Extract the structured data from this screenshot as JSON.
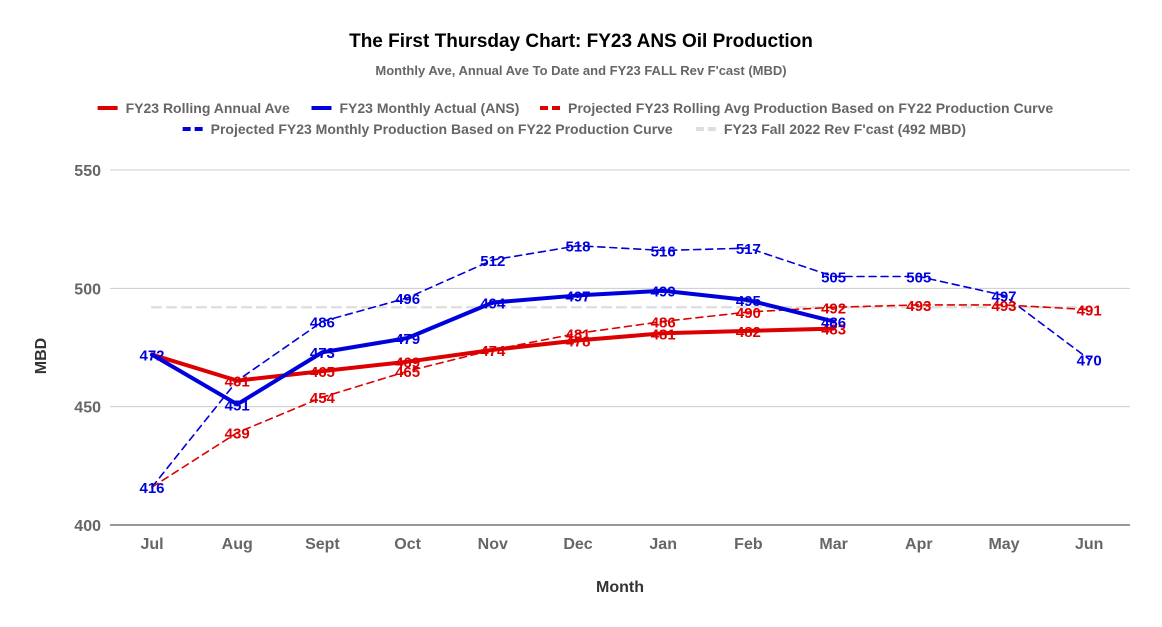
{
  "title": "The First Thursday Chart: FY23 ANS Oil Production",
  "subtitle": "Monthly Ave, Annual Ave To Date and FY23 FALL Rev F'cast (MBD)",
  "chart_data": {
    "type": "line",
    "title": "The First Thursday Chart: FY23 ANS Oil Production",
    "subtitle": "Monthly Ave, Annual Ave To Date and FY23 FALL Rev F'cast (MBD)",
    "xlabel": "Month",
    "ylabel": "MBD",
    "ylim": [
      400,
      550
    ],
    "yticks": [
      400,
      450,
      500,
      550
    ],
    "grid": true,
    "legend_position": "top",
    "categories": [
      "Jul",
      "Aug",
      "Sept",
      "Oct",
      "Nov",
      "Dec",
      "Jan",
      "Feb",
      "Mar",
      "Apr",
      "May",
      "Jun"
    ],
    "series": [
      {
        "name": "FY23 Fall 2022 Rev F'cast (492 MBD)",
        "color": "#dddddd",
        "style": "dashed",
        "width": "medium",
        "values": [
          492,
          492,
          492,
          492,
          492,
          492,
          492,
          492,
          492,
          492,
          492,
          492
        ],
        "labels": []
      },
      {
        "name": "Projected FY23 Monthly Production Based on FY22 Production Curve",
        "color": "#0000dd",
        "style": "dashed",
        "width": "thin",
        "values": [
          416,
          461,
          486,
          496,
          512,
          518,
          516,
          517,
          505,
          505,
          497,
          470
        ],
        "labels": [
          "416",
          "",
          "486",
          "496",
          "512",
          "518",
          "516",
          "517",
          "505",
          "505",
          "497",
          "470"
        ]
      },
      {
        "name": "Projected FY23 Rolling Avg Production Based on FY22 Production Curve",
        "color": "#dd0000",
        "style": "dashed",
        "width": "thin",
        "values": [
          416,
          439,
          454,
          465,
          474,
          481,
          486,
          490,
          492,
          493,
          493,
          491
        ],
        "labels": [
          "",
          "439",
          "454",
          "465",
          "",
          "481",
          "486",
          "490",
          "492",
          "493",
          "493",
          "491"
        ]
      },
      {
        "name": "FY23 Rolling Annual Ave",
        "color": "#dd0000",
        "style": "solid",
        "width": "thick",
        "values": [
          472,
          461,
          465,
          469,
          474,
          478,
          481,
          482,
          483,
          null,
          null,
          null
        ],
        "labels": [
          "",
          "461",
          "465",
          "469",
          "474",
          "478",
          "481",
          "482",
          "483",
          "",
          "",
          ""
        ]
      },
      {
        "name": "FY23 Monthly Actual (ANS)",
        "color": "#0000dd",
        "style": "solid",
        "width": "thick",
        "values": [
          472,
          451,
          473,
          479,
          494,
          497,
          499,
          495,
          486,
          null,
          null,
          null
        ],
        "labels": [
          "472",
          "451",
          "473",
          "479",
          "494",
          "497",
          "499",
          "495",
          "486",
          "",
          "",
          ""
        ]
      }
    ]
  },
  "legend": [
    {
      "label": "FY23 Rolling Annual Ave",
      "color": "#dd0000",
      "style": "solid"
    },
    {
      "label": "FY23 Monthly Actual (ANS)",
      "color": "#0000dd",
      "style": "solid"
    },
    {
      "label": "Projected FY23 Rolling Avg Production Based on FY22 Production Curve",
      "color": "#dd0000",
      "style": "dashed"
    },
    {
      "label": "Projected FY23 Monthly Production Based on FY22 Production Curve",
      "color": "#0000dd",
      "style": "dashed"
    },
    {
      "label": "FY23 Fall 2022 Rev F'cast (492 MBD)",
      "color": "#dddddd",
      "style": "dashed"
    }
  ]
}
